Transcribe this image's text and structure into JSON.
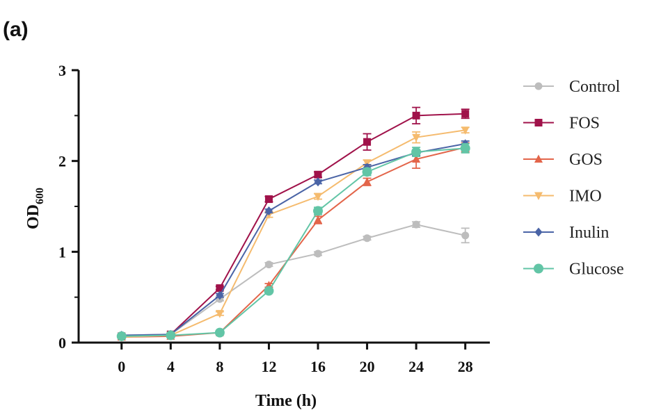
{
  "panel_label": "(a)",
  "chart_data": {
    "type": "line",
    "title": "",
    "xlabel": "Time (h)",
    "ylabel_main": "OD",
    "ylabel_sub": "600",
    "x": [
      0,
      4,
      8,
      12,
      16,
      20,
      24,
      28
    ],
    "xticks": [
      "0",
      "4",
      "8",
      "12",
      "16",
      "20",
      "24",
      "28"
    ],
    "yticks": [
      "0",
      "1",
      "2",
      "3"
    ],
    "xlim": [
      -3.5,
      30
    ],
    "ylim": [
      0,
      3
    ],
    "legend_position": "right",
    "series": [
      {
        "name": "Control",
        "color": "#bdbdbd",
        "marker": "circle",
        "values": [
          0.08,
          0.09,
          0.48,
          0.86,
          0.98,
          1.15,
          1.3,
          1.18
        ],
        "errors": [
          0.01,
          0.01,
          0.02,
          0.02,
          0.02,
          0.02,
          0.03,
          0.08
        ]
      },
      {
        "name": "FOS",
        "color": "#a0124a",
        "marker": "square",
        "values": [
          0.07,
          0.09,
          0.6,
          1.58,
          1.85,
          2.21,
          2.5,
          2.52
        ],
        "errors": [
          0.01,
          0.01,
          0.02,
          0.03,
          0.03,
          0.09,
          0.09,
          0.05
        ]
      },
      {
        "name": "GOS",
        "color": "#e3654a",
        "marker": "triangle-up",
        "values": [
          0.06,
          0.07,
          0.11,
          0.63,
          1.35,
          1.77,
          2.02,
          2.15
        ],
        "errors": [
          0.01,
          0.01,
          0.01,
          0.02,
          0.04,
          0.04,
          0.1,
          0.05
        ]
      },
      {
        "name": "IMO",
        "color": "#f5bb6e",
        "marker": "triangle-down",
        "values": [
          0.06,
          0.08,
          0.32,
          1.41,
          1.61,
          1.98,
          2.26,
          2.34
        ],
        "errors": [
          0.01,
          0.01,
          0.02,
          0.03,
          0.03,
          0.03,
          0.06,
          0.03
        ]
      },
      {
        "name": "Inulin",
        "color": "#4a64a6",
        "marker": "diamond",
        "values": [
          0.08,
          0.09,
          0.52,
          1.45,
          1.77,
          1.93,
          2.09,
          2.19
        ],
        "errors": [
          0.01,
          0.01,
          0.02,
          0.02,
          0.02,
          0.03,
          0.03,
          0.03
        ]
      },
      {
        "name": "Glucose",
        "color": "#62c5a6",
        "marker": "circle-large",
        "values": [
          0.07,
          0.08,
          0.11,
          0.57,
          1.45,
          1.88,
          2.1,
          2.14
        ],
        "errors": [
          0.01,
          0.01,
          0.01,
          0.02,
          0.04,
          0.04,
          0.05,
          0.05
        ]
      }
    ]
  }
}
